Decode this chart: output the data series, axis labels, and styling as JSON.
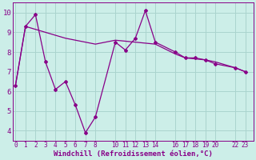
{
  "xlabel": "Windchill (Refroidissement éolien,°C)",
  "background_color": "#cceee8",
  "grid_color": "#aad4ce",
  "line_color": "#880088",
  "x_jagged": [
    0,
    1,
    2,
    3,
    4,
    5,
    6,
    7,
    8,
    10,
    11,
    12,
    13,
    14,
    16,
    17,
    18,
    19,
    20,
    22,
    23
  ],
  "y_jagged": [
    6.3,
    9.3,
    9.9,
    7.5,
    6.1,
    6.5,
    5.3,
    3.9,
    4.7,
    8.5,
    8.1,
    8.7,
    10.1,
    8.5,
    8.0,
    7.7,
    7.7,
    7.6,
    7.4,
    7.2,
    7.0
  ],
  "x_smooth": [
    0,
    1,
    2,
    3,
    4,
    5,
    6,
    7,
    8,
    10,
    11,
    12,
    13,
    14,
    16,
    17,
    18,
    19,
    20,
    22,
    23
  ],
  "y_smooth": [
    6.3,
    9.3,
    9.15,
    9.0,
    8.85,
    8.7,
    8.6,
    8.5,
    8.4,
    8.6,
    8.55,
    8.5,
    8.45,
    8.4,
    7.9,
    7.7,
    7.65,
    7.6,
    7.5,
    7.2,
    7.0
  ],
  "ylim": [
    3.5,
    10.5
  ],
  "xlim": [
    -0.3,
    23.8
  ],
  "yticks": [
    4,
    5,
    6,
    7,
    8,
    9,
    10
  ],
  "xticks": [
    0,
    1,
    2,
    3,
    4,
    5,
    6,
    7,
    8,
    10,
    11,
    12,
    13,
    14,
    16,
    17,
    18,
    19,
    20,
    22,
    23
  ],
  "xlabel_fontsize": 6.5,
  "tick_fontsize": 5.5,
  "ytick_fontsize": 6.5
}
